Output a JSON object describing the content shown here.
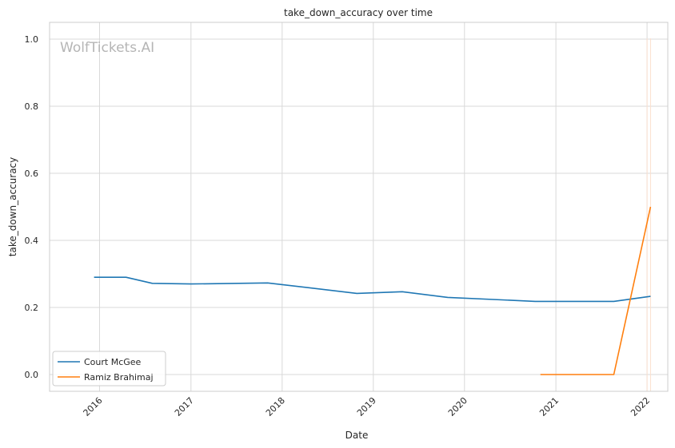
{
  "chart_data": {
    "type": "line",
    "title": "take_down_accuracy over time",
    "xlabel": "Date",
    "ylabel": "take_down_accuracy",
    "watermark": "WolfTickets.AI",
    "grid": true,
    "legend_position": "bottom-left",
    "xlim": [
      "2015-06-15",
      "2022-03-25"
    ],
    "ylim": [
      -0.05,
      1.05
    ],
    "x_ticks": [
      "2016",
      "2017",
      "2018",
      "2019",
      "2020",
      "2021",
      "2022"
    ],
    "y_ticks": [
      "0.0",
      "0.2",
      "0.4",
      "0.6",
      "0.8",
      "1.0"
    ],
    "series": [
      {
        "name": "Court McGee",
        "color": "#1f77b4",
        "points": [
          {
            "x": "2015-12-10",
            "y": 0.29
          },
          {
            "x": "2016-04-16",
            "y": 0.29
          },
          {
            "x": "2016-07-30",
            "y": 0.272
          },
          {
            "x": "2017-01-01",
            "y": 0.27
          },
          {
            "x": "2017-11-04",
            "y": 0.273
          },
          {
            "x": "2018-10-27",
            "y": 0.242
          },
          {
            "x": "2019-04-27",
            "y": 0.247
          },
          {
            "x": "2019-10-26",
            "y": 0.23
          },
          {
            "x": "2020-10-10",
            "y": 0.218
          },
          {
            "x": "2021-08-21",
            "y": 0.218
          },
          {
            "x": "2022-01-15",
            "y": 0.233
          }
        ]
      },
      {
        "name": "Ramiz Brahimaj",
        "color": "#ff7f0e",
        "points": [
          {
            "x": "2020-10-31",
            "y": 0.0
          },
          {
            "x": "2021-08-21",
            "y": 0.0
          },
          {
            "x": "2022-01-15",
            "y": 0.5
          }
        ]
      }
    ],
    "vertical_lines": [
      {
        "x": "2022-01-01",
        "color": "#fbe0cf"
      },
      {
        "x": "2022-01-15",
        "color": "#fbe0cf"
      }
    ]
  }
}
